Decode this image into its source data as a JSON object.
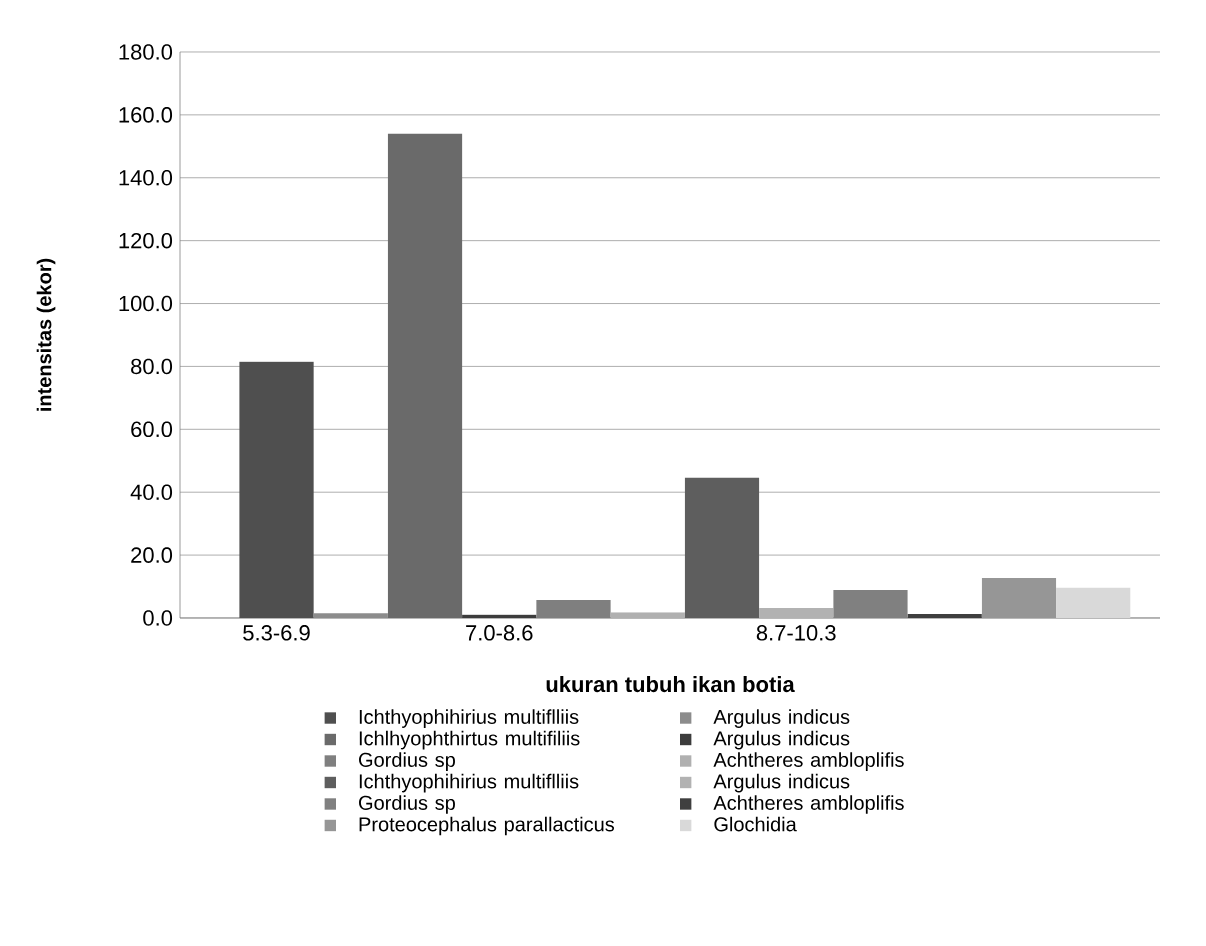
{
  "chart_data": {
    "type": "bar",
    "xlabel": "ukuran tubuh ikan botia",
    "ylabel": "intensitas (ekor)",
    "categories": [
      "5.3-6.9",
      null,
      null,
      "7.0-8.6",
      null,
      null,
      null,
      "8.7-10.3",
      null,
      null,
      null,
      null
    ],
    "ylim": [
      0,
      180
    ],
    "yticks": [
      {
        "value": 0,
        "label": "0.0"
      },
      {
        "value": 20,
        "label": "20.0"
      },
      {
        "value": 40,
        "label": "40.0"
      },
      {
        "value": 60,
        "label": "60.0"
      },
      {
        "value": 80,
        "label": "80.0"
      },
      {
        "value": 100,
        "label": "100.0"
      },
      {
        "value": 120,
        "label": "120.0"
      },
      {
        "value": 140,
        "label": "140.0"
      },
      {
        "value": 160,
        "label": "160.0"
      },
      {
        "value": 180,
        "label": "180.0"
      }
    ],
    "grid": "y",
    "legend": "bottom",
    "series": [
      {
        "name": "Ichthyophihirius multiflliis",
        "color": "#4f4f4f",
        "values": [
          81.5,
          null,
          null,
          null,
          null,
          null,
          null,
          null,
          null,
          null,
          null,
          null
        ]
      },
      {
        "name": "Argulus indicus",
        "color": "#8c8c8c",
        "values": [
          null,
          1.5,
          null,
          null,
          null,
          null,
          null,
          null,
          null,
          null,
          null,
          null
        ]
      },
      {
        "name": "Ichlhyophthirtus multifiliis",
        "color": "#6a6a6a",
        "values": [
          null,
          null,
          154,
          null,
          null,
          null,
          null,
          null,
          null,
          null,
          null,
          null
        ]
      },
      {
        "name": "Argulus indicus",
        "color": "#3c3c3c",
        "values": [
          null,
          null,
          null,
          1,
          null,
          null,
          null,
          null,
          null,
          null,
          null,
          null
        ]
      },
      {
        "name": "Gordius sp",
        "color": "#7f7f7f",
        "values": [
          null,
          null,
          null,
          null,
          5.7,
          null,
          null,
          null,
          null,
          null,
          null,
          null
        ]
      },
      {
        "name": "Achtheres ambloplifis",
        "color": "#b0b0b0",
        "values": [
          null,
          null,
          null,
          null,
          null,
          1.8,
          null,
          null,
          null,
          null,
          null,
          null
        ]
      },
      {
        "name": "Ichthyophihirius multiflliis",
        "color": "#5e5e5e",
        "values": [
          null,
          null,
          null,
          null,
          null,
          null,
          44.6,
          null,
          null,
          null,
          null,
          null
        ]
      },
      {
        "name": "Argulus indicus",
        "color": "#b2b2b2",
        "values": [
          null,
          null,
          null,
          null,
          null,
          null,
          null,
          3.2,
          null,
          null,
          null,
          null
        ]
      },
      {
        "name": "Gordius sp",
        "color": "#808080",
        "values": [
          null,
          null,
          null,
          null,
          null,
          null,
          null,
          null,
          8.9,
          null,
          null,
          null
        ]
      },
      {
        "name": "Achtheres ambloplifis",
        "color": "#3f3f3f",
        "values": [
          null,
          null,
          null,
          null,
          null,
          null,
          null,
          null,
          null,
          1.3,
          null,
          null
        ]
      },
      {
        "name": "Proteocephalus parallacticus",
        "color": "#969696",
        "values": [
          null,
          null,
          null,
          null,
          null,
          null,
          null,
          null,
          null,
          null,
          12.7,
          null
        ]
      },
      {
        "name": "Glochidia",
        "color": "#d9d9d9",
        "values": [
          null,
          null,
          null,
          null,
          null,
          null,
          null,
          null,
          null,
          null,
          null,
          9.6
        ]
      }
    ]
  }
}
